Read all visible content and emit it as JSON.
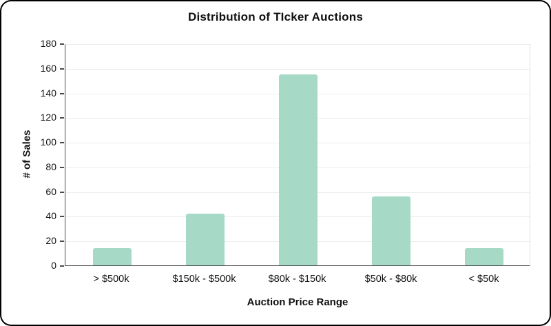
{
  "chart_data": {
    "type": "bar",
    "title": "Distribution of TIcker Auctions",
    "categories": [
      "> $500k",
      "$150k - $500k",
      "$80k - $150k",
      "$50k - $80k",
      "< $50k"
    ],
    "values": [
      14,
      42,
      155,
      56,
      14
    ],
    "xlabel": "Auction Price Range",
    "ylabel": "# of Sales",
    "ylim": [
      0,
      180
    ],
    "ytick_step": 20,
    "bar_color": "#a6dac6",
    "grid": true,
    "legend": false,
    "axis_color": "#4a4a4a"
  }
}
